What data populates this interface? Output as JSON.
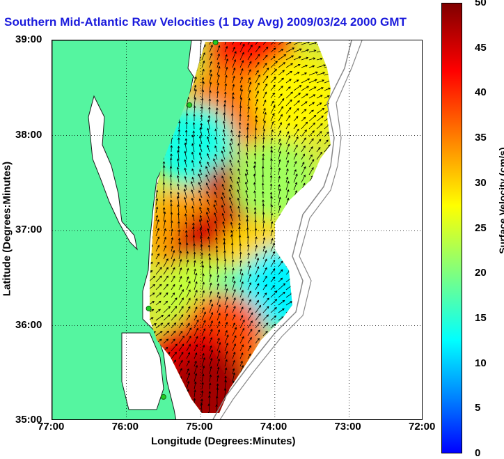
{
  "title": "Southern Mid-Atlantic Raw Velocities (1 Day Avg) 2009/03/24 2000 GMT",
  "x_axis": {
    "label": "Longitude (Degrees:Minutes)",
    "ticks": [
      "77:00",
      "76:00",
      "75:00",
      "74:00",
      "73:00",
      "72:00"
    ]
  },
  "y_axis": {
    "label": "Latitude (Degrees:Minutes)",
    "ticks": [
      "39:00",
      "38:00",
      "37:00",
      "36:00",
      "35:00"
    ]
  },
  "colorbar": {
    "label": "Surface Velocity (cm/s)",
    "ticks": [
      "50",
      "45",
      "40",
      "35",
      "30",
      "25",
      "20",
      "15",
      "10",
      "5",
      "0"
    ],
    "range": [
      0,
      50
    ],
    "colormap": "jet"
  },
  "colors": {
    "land": "#55f5a0",
    "water": "#ffffff",
    "title": "#1a1adc",
    "coastline": "#1a1a1a",
    "bathymetry": "#888888",
    "station": "#22cc22"
  },
  "map_extent": {
    "lon": [
      -77,
      -72
    ],
    "lat": [
      35,
      39
    ]
  },
  "chart_data": {
    "type": "heatmap",
    "title": "Southern Mid-Atlantic Raw Velocities (1 Day Avg) 2009/03/24 2000 GMT",
    "xlabel": "Longitude (Degrees:Minutes)",
    "ylabel": "Latitude (Degrees:Minutes)",
    "xlim": [
      -77,
      -72
    ],
    "ylim": [
      35,
      39
    ],
    "color_label": "Surface Velocity (cm/s)",
    "color_range": [
      0,
      50
    ],
    "grid": "dotted",
    "velocity_regions": [
      {
        "lon": -74.3,
        "lat": 38.8,
        "speed": 42
      },
      {
        "lon": -74.6,
        "lat": 38.3,
        "speed": 35
      },
      {
        "lon": -73.7,
        "lat": 38.4,
        "speed": 28
      },
      {
        "lon": -75.1,
        "lat": 37.9,
        "speed": 14
      },
      {
        "lon": -74.5,
        "lat": 37.3,
        "speed": 46
      },
      {
        "lon": -74.0,
        "lat": 37.5,
        "speed": 22
      },
      {
        "lon": -75.2,
        "lat": 37.0,
        "speed": 33
      },
      {
        "lon": -74.8,
        "lat": 36.8,
        "speed": 45
      },
      {
        "lon": -74.2,
        "lat": 36.7,
        "speed": 30
      },
      {
        "lon": -75.0,
        "lat": 36.3,
        "speed": 24
      },
      {
        "lon": -74.4,
        "lat": 36.2,
        "speed": 18
      },
      {
        "lon": -73.9,
        "lat": 36.4,
        "speed": 12
      },
      {
        "lon": -74.7,
        "lat": 35.9,
        "speed": 38
      },
      {
        "lon": -75.1,
        "lat": 35.6,
        "speed": 44
      },
      {
        "lon": -74.9,
        "lat": 35.3,
        "speed": 48
      }
    ],
    "stations": [
      {
        "lon": -74.8,
        "lat": 38.98
      },
      {
        "lon": -75.15,
        "lat": 38.32
      },
      {
        "lon": -75.7,
        "lat": 36.18
      },
      {
        "lon": -75.5,
        "lat": 35.25
      }
    ]
  }
}
